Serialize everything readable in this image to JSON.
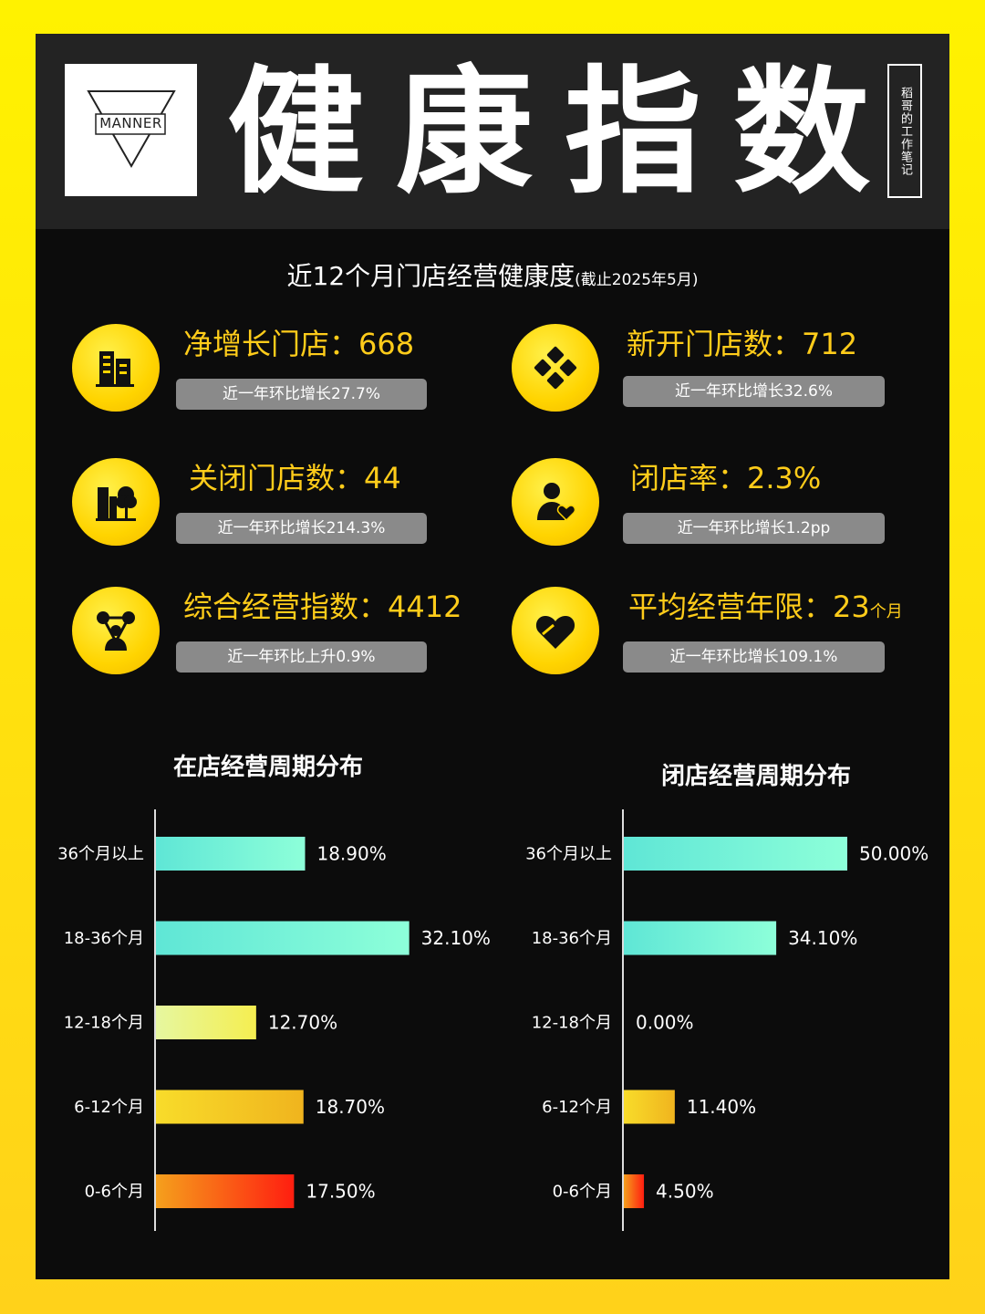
{
  "header": {
    "logo_text": "MANNER",
    "title": "健康指数",
    "author": "稻哥的工作笔记"
  },
  "subtitle": {
    "main": "近12个月门店经营健康度",
    "note": "(截止2025年5月)"
  },
  "metrics": [
    {
      "label": "净增长门店：668",
      "sub": "近一年环比增长27.7%",
      "icon": "building-icon"
    },
    {
      "label": "新开门店数：712",
      "sub": "近一年环比增长32.6%",
      "icon": "diamond-grid-icon"
    },
    {
      "label": "关闭门店数：44",
      "sub": "近一年环比增长214.3%",
      "icon": "building-tree-icon"
    },
    {
      "label": "闭店率：2.3%",
      "sub": "近一年环比增长1.2pp",
      "icon": "person-heart-icon"
    },
    {
      "label": "综合经营指数：4412",
      "sub": "近一年环比上升0.9%",
      "icon": "network-icon"
    },
    {
      "label": "平均经营年限：23",
      "unit": "个月",
      "sub": "近一年环比增长109.1%",
      "icon": "heart-icon"
    }
  ],
  "colors": {
    "background": "#0c0c0c",
    "accent": "#ffcc1a",
    "pill": "#8a8a8a",
    "bar_teal": "#7ff7d9",
    "bar_yellow": "#f5d323",
    "bar_red": "#ff2a12"
  },
  "chart_data": [
    {
      "type": "bar",
      "orientation": "horizontal",
      "title": "在店经营周期分布",
      "categories": [
        "36个月以上",
        "18-36个月",
        "12-18个月",
        "6-12个月",
        "0-6个月"
      ],
      "values": [
        18.9,
        32.1,
        12.7,
        18.7,
        17.5
      ],
      "value_labels": [
        "18.90%",
        "32.10%",
        "12.70%",
        "18.70%",
        "17.50%"
      ],
      "unit": "%"
    },
    {
      "type": "bar",
      "orientation": "horizontal",
      "title": "闭店经营周期分布",
      "categories": [
        "36个月以上",
        "18-36个月",
        "12-18个月",
        "6-12个月",
        "0-6个月"
      ],
      "values": [
        50.0,
        34.1,
        0.0,
        11.4,
        4.5
      ],
      "value_labels": [
        "50.00%",
        "34.10%",
        "0.00%",
        "11.40%",
        "4.50%"
      ],
      "unit": "%"
    }
  ]
}
